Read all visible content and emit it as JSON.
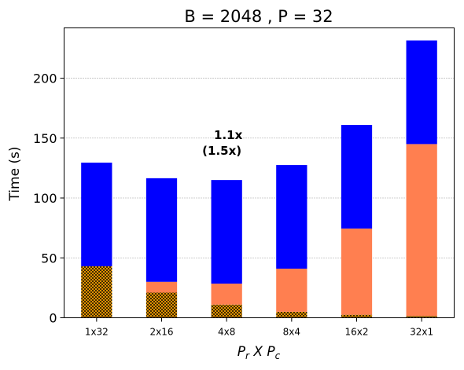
{
  "chart_data": {
    "type": "bar",
    "stacked": true,
    "title": "B = 2048 ,  P = 32",
    "ylabel": "Time (s)",
    "xlabel": {
      "base1": "P",
      "sub1": "r",
      "mid": " X ",
      "base2": "P",
      "sub2": "c"
    },
    "categories": [
      "1x32",
      "2x16",
      "4x8",
      "8x4",
      "16x2",
      "32x1"
    ],
    "ylim": [
      0,
      242
    ],
    "yticks": [
      0,
      50,
      100,
      150,
      200
    ],
    "grid": "horizontal dotted",
    "series": [
      {
        "values": [
          43,
          21,
          11,
          5,
          2.5,
          1.5
        ],
        "color": "#FFA500",
        "hatch": true
      },
      {
        "values": [
          0,
          9,
          17.5,
          36,
          72,
          143.5
        ],
        "color": "#FF7F50",
        "hatch": false
      },
      {
        "values": [
          86.5,
          86.5,
          86.5,
          86.5,
          86.5,
          86.5
        ],
        "color": "#0000FF",
        "hatch": false
      }
    ],
    "annotation": {
      "category": "4x8",
      "lines": [
        "1.1x",
        "(1.5x)"
      ],
      "value": 140
    }
  }
}
